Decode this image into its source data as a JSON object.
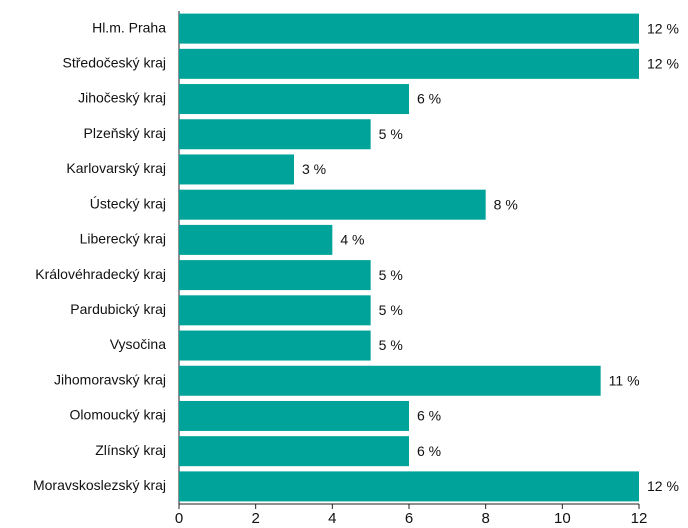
{
  "chart_data": {
    "type": "bar",
    "orientation": "horizontal",
    "categories": [
      "Hl.m. Praha",
      "Středočeský kraj",
      "Jihočeský kraj",
      "Plzeňský kraj",
      "Karlovarský kraj",
      "Ústecký kraj",
      "Liberecký kraj",
      "Královéhradecký kraj",
      "Pardubický kraj",
      "Vysočina",
      "Jihomoravský kraj",
      "Olomoucký kraj",
      "Zlínský kraj",
      "Moravskoslezský kraj"
    ],
    "values": [
      12,
      12,
      6,
      5,
      3,
      8,
      4,
      5,
      5,
      5,
      11,
      6,
      6,
      12
    ],
    "value_labels": [
      "12 %",
      "12 %",
      "6 %",
      "5 %",
      "3 %",
      "8 %",
      "4 %",
      "5 %",
      "5 %",
      "5 %",
      "11 %",
      "6 %",
      "6 %",
      "12 %"
    ],
    "color": "#00a39a",
    "xlim": [
      0,
      12
    ],
    "xticks": [
      0,
      2,
      4,
      6,
      8,
      10,
      12
    ],
    "grid": false
  }
}
